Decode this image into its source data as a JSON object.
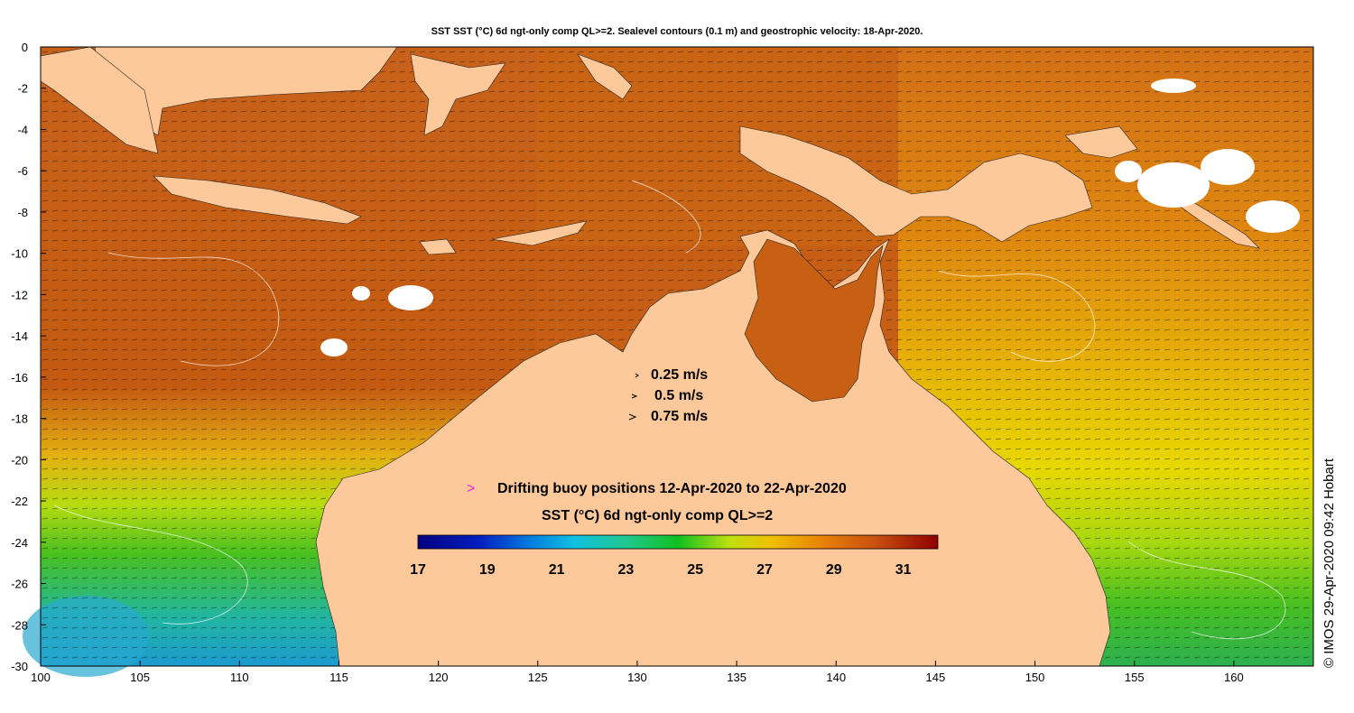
{
  "title": "SST SST (°C) 6d ngt-only comp QL>=2. Sealevel contours (0.1 m) and geostrophic velocity: 18-Apr-2020.",
  "axes": {
    "x_ticks": [
      "100",
      "105",
      "110",
      "115",
      "120",
      "125",
      "130",
      "135",
      "140",
      "145",
      "150",
      "155",
      "160"
    ],
    "y_ticks": [
      "0",
      "-2",
      "-4",
      "-6",
      "-8",
      "-10",
      "-12",
      "-14",
      "-16",
      "-18",
      "-20",
      "-22",
      "-24",
      "-26",
      "-28",
      "-30"
    ],
    "lon_range": [
      100,
      164
    ],
    "lat_range": [
      -30,
      0
    ]
  },
  "velocity_legend": [
    "0.25 m/s",
    "0.5 m/s",
    "0.75 m/s"
  ],
  "buoy_legend": {
    "symbol": ">",
    "label": "Drifting buoy positions 12-Apr-2020 to 22-Apr-2020",
    "color": "#e020e0"
  },
  "colorbar": {
    "title": "SST (°C) 6d ngt-only comp QL>=2",
    "tick_labels": [
      "17",
      "19",
      "21",
      "23",
      "25",
      "27",
      "29",
      "31"
    ],
    "range": [
      17,
      32
    ]
  },
  "credit": "© IMOS 29-Apr-2020 09:42 Hobart",
  "colors": {
    "land": "#fdc99b",
    "sst_warm": "#c85c14",
    "sst_orange": "#d9780e",
    "sst_yellow": "#e8d000",
    "sst_green": "#5cc018",
    "sst_cyan": "#20b8c8"
  }
}
